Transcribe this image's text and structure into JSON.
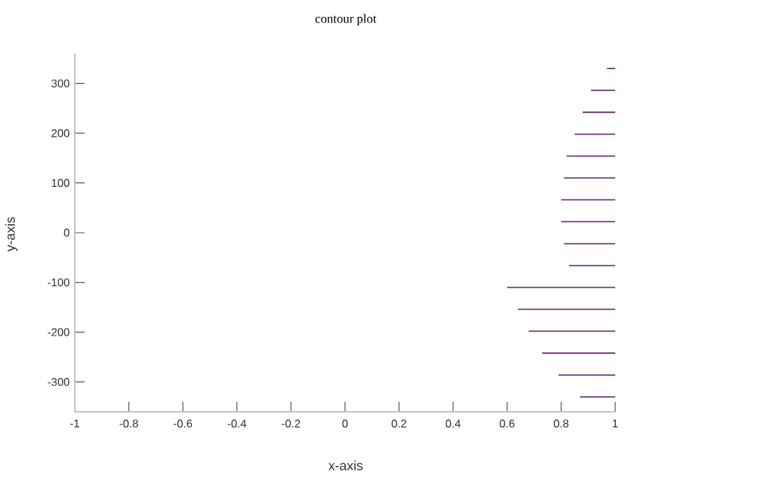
{
  "chart_data": {
    "type": "line",
    "title": "contour plot",
    "xlabel": "x-axis",
    "ylabel": "y-axis",
    "xlim": [
      -1,
      1
    ],
    "ylim": [
      -360,
      360
    ],
    "xticks": [
      -1,
      -0.8,
      -0.6,
      -0.4,
      -0.2,
      0,
      0.2,
      0.4,
      0.6,
      0.8,
      1
    ],
    "yticks": [
      -300,
      -200,
      -100,
      0,
      100,
      200,
      300
    ],
    "marker": "none",
    "line_style": "solid",
    "series": [
      {
        "color": "#6a2c7a",
        "x": [
          0.97,
          1
        ],
        "values": [
          330,
          330
        ]
      },
      {
        "color": "#6a2c7a",
        "x": [
          0.91,
          1
        ],
        "values": [
          286,
          286
        ]
      },
      {
        "color": "#6a2c7a",
        "x": [
          0.88,
          1
        ],
        "values": [
          242,
          242
        ]
      },
      {
        "color": "#6a2c7a",
        "x": [
          0.85,
          1
        ],
        "values": [
          198,
          198
        ]
      },
      {
        "color": "#6a2c7a",
        "x": [
          0.82,
          1
        ],
        "values": [
          154,
          154
        ]
      },
      {
        "color": "#6a2c7a",
        "x": [
          0.81,
          1
        ],
        "values": [
          110,
          110
        ]
      },
      {
        "color": "#6a2c7a",
        "x": [
          0.8,
          1
        ],
        "values": [
          66,
          66
        ]
      },
      {
        "color": "#6a2c7a",
        "x": [
          0.8,
          1
        ],
        "values": [
          22,
          22
        ]
      },
      {
        "color": "#6a2c7a",
        "x": [
          0.81,
          1
        ],
        "values": [
          -22,
          -22
        ]
      },
      {
        "color": "#6a2c7a",
        "x": [
          0.83,
          1
        ],
        "values": [
          -66,
          -66
        ]
      },
      {
        "color": "#6a2c7a",
        "x": [
          0.6,
          1
        ],
        "values": [
          -110,
          -110
        ]
      },
      {
        "color": "#6a2c7a",
        "x": [
          0.64,
          1
        ],
        "values": [
          -154,
          -154
        ]
      },
      {
        "color": "#6a2c7a",
        "x": [
          0.68,
          1
        ],
        "values": [
          -198,
          -198
        ]
      },
      {
        "color": "#6a2c7a",
        "x": [
          0.73,
          1
        ],
        "values": [
          -242,
          -242
        ]
      },
      {
        "color": "#6a2c7a",
        "x": [
          0.79,
          1
        ],
        "values": [
          -286,
          -286
        ]
      },
      {
        "color": "#6a2c7a",
        "x": [
          0.87,
          1
        ],
        "values": [
          -330,
          -330
        ]
      }
    ]
  }
}
